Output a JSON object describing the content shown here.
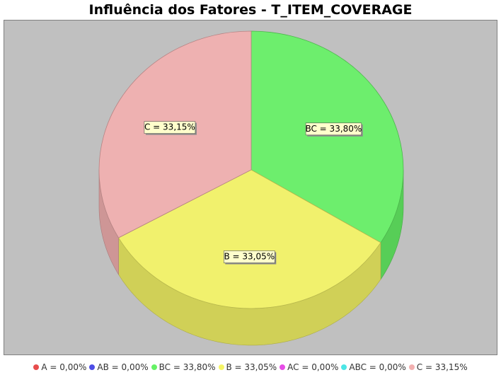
{
  "chart_data": {
    "type": "pie",
    "title": "Influência dos Fatores - T_ITEM_COVERAGE",
    "slices": [
      {
        "label": "A = 0,00%",
        "name": "A",
        "value": 0.0,
        "color": "#e74c4c"
      },
      {
        "label": "AB = 0,00%",
        "name": "AB",
        "value": 0.0,
        "color": "#4d4de6"
      },
      {
        "label": "BC = 33,80%",
        "name": "BC",
        "value": 33.8,
        "color": "#66f266"
      },
      {
        "label": "B = 33,05%",
        "name": "B",
        "value": 33.05,
        "color": "#f5f566"
      },
      {
        "label": "AC = 0,00%",
        "name": "AC",
        "value": 0.0,
        "color": "#e64de6"
      },
      {
        "label": "ABC = 0,00%",
        "name": "ABC",
        "value": 0.0,
        "color": "#4de6e6"
      },
      {
        "label": "C = 33,15%",
        "name": "C",
        "value": 33.15,
        "color": "#f2b0b0"
      }
    ],
    "legend_position": "bottom",
    "style": "3d",
    "background": "#c0c0c0"
  }
}
